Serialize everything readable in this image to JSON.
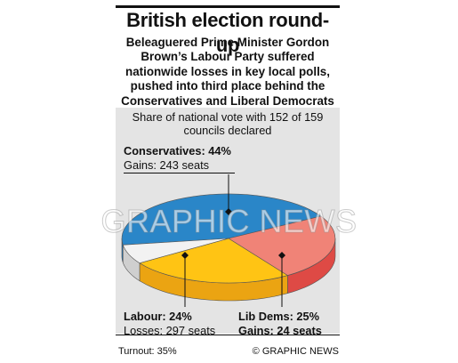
{
  "header": {
    "title": "British election round-up",
    "subtitle": "Beleaguered Prime Minister Gordon Brown’s Labour Party suffered nationwide losses in key local polls, pushed into third place behind the Conservatives and Liberal Democrats"
  },
  "chart_data": {
    "type": "pie",
    "title": "Share of national vote with 152 of 159 councils declared",
    "slices": [
      {
        "party": "Conservatives",
        "share_label": "Conservatives: 44%",
        "value": 44,
        "seats_label": "Gains: 243 seats",
        "seats": 243,
        "color": "#2a86c8",
        "side": "#1d6aa6"
      },
      {
        "party": "Labour",
        "share_label": "Labour: 24%",
        "value": 24,
        "seats_label": "Losses: 297 seats",
        "seats": -297,
        "color": "#f08377",
        "side": "#de4a45"
      },
      {
        "party": "Lib Dems",
        "share_label": "Lib Dems: 25%",
        "value": 25,
        "seats_label": "Gains: 24 seats",
        "seats": 24,
        "color": "#ffc414",
        "side": "#eba412"
      },
      {
        "party": "Others",
        "value": 7,
        "color": "#f2f2f2",
        "side": "#cfcfcf"
      }
    ]
  },
  "footer": {
    "turnout": "Turnout: 35%",
    "credit": "© GRAPHIC NEWS"
  },
  "watermark": "GRAPHIC NEWS"
}
